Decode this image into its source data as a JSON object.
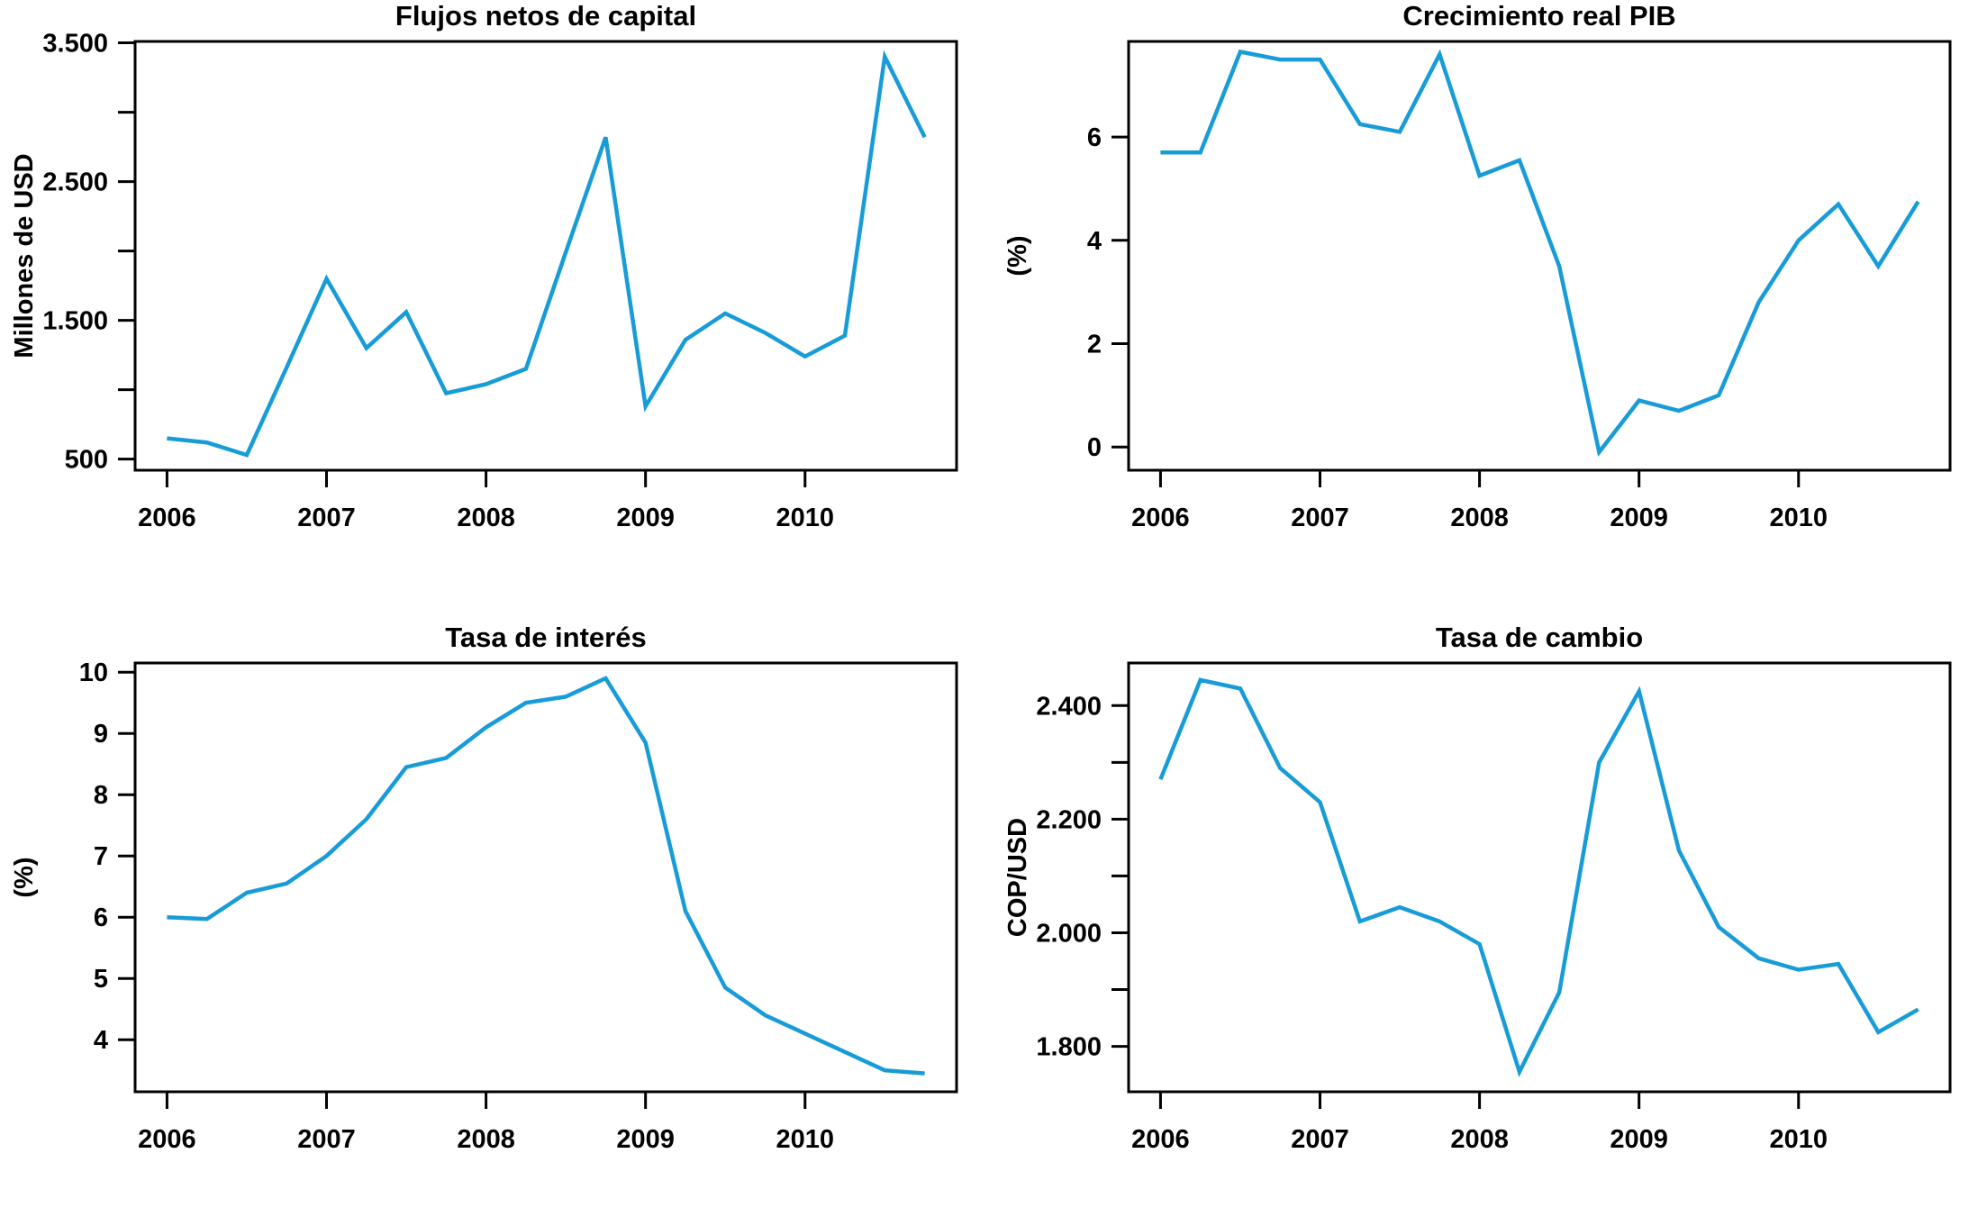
{
  "page": {
    "background": "#ffffff",
    "text_color": "#000000",
    "axis_color": "#000000"
  },
  "chart_data": [
    {
      "type": "line",
      "title": "Flujos netos de capital",
      "ylabel": "Millones de USD",
      "line_color": "#189cd8",
      "grid": false,
      "legend": "none",
      "xlim": [
        2005.8,
        2010.95
      ],
      "ylim": [
        420,
        3510
      ],
      "x": [
        2006.0,
        2006.25,
        2006.5,
        2006.75,
        2007.0,
        2007.25,
        2007.5,
        2007.75,
        2008.0,
        2008.25,
        2008.5,
        2008.75,
        2009.0,
        2009.25,
        2009.5,
        2009.75,
        2010.0,
        2010.25,
        2010.5,
        2010.75
      ],
      "values": [
        650,
        620,
        530,
        1160,
        1800,
        1300,
        1560,
        975,
        1040,
        1150,
        1990,
        2820,
        880,
        1360,
        1550,
        1410,
        1240,
        1390,
        3400,
        2820
      ],
      "xticks": {
        "values": [
          2006,
          2007,
          2008,
          2009,
          2010
        ],
        "labels": [
          "2006",
          "2007",
          "2008",
          "2009",
          "2010"
        ]
      },
      "yticks": {
        "values": [
          500,
          1000,
          1500,
          2000,
          2500,
          3000,
          3500
        ],
        "labels": [
          "500",
          "",
          "1.500",
          "",
          "2.500",
          "",
          "3.500"
        ]
      }
    },
    {
      "type": "line",
      "title": "Crecimiento real PIB",
      "ylabel": "(%)",
      "line_color": "#189cd8",
      "grid": false,
      "legend": "none",
      "xlim": [
        2005.8,
        2010.95
      ],
      "ylim": [
        -0.45,
        7.85
      ],
      "x": [
        2006.0,
        2006.25,
        2006.5,
        2006.75,
        2007.0,
        2007.25,
        2007.5,
        2007.75,
        2008.0,
        2008.25,
        2008.5,
        2008.75,
        2009.0,
        2009.25,
        2009.5,
        2009.75,
        2010.0,
        2010.25,
        2010.5,
        2010.75
      ],
      "values": [
        5.7,
        5.7,
        7.65,
        7.5,
        7.5,
        6.25,
        6.1,
        7.6,
        5.25,
        5.55,
        3.5,
        -0.1,
        0.9,
        0.7,
        1.0,
        2.8,
        4.0,
        4.7,
        3.5,
        4.75
      ],
      "xticks": {
        "values": [
          2006,
          2007,
          2008,
          2009,
          2010
        ],
        "labels": [
          "2006",
          "2007",
          "2008",
          "2009",
          "2010"
        ]
      },
      "yticks": {
        "values": [
          0,
          2,
          4,
          6
        ],
        "labels": [
          "0",
          "2",
          "4",
          "6"
        ]
      }
    },
    {
      "type": "line",
      "title": "Tasa de interés",
      "ylabel": "(%)",
      "line_color": "#189cd8",
      "grid": false,
      "legend": "none",
      "xlim": [
        2005.8,
        2010.95
      ],
      "ylim": [
        3.15,
        10.15
      ],
      "x": [
        2006.0,
        2006.25,
        2006.5,
        2006.75,
        2007.0,
        2007.25,
        2007.5,
        2007.75,
        2008.0,
        2008.25,
        2008.5,
        2008.75,
        2009.0,
        2009.25,
        2009.5,
        2009.75,
        2010.0,
        2010.25,
        2010.5,
        2010.75
      ],
      "values": [
        6.0,
        5.97,
        6.4,
        6.55,
        7.0,
        7.6,
        8.45,
        8.6,
        9.1,
        9.5,
        9.6,
        9.9,
        8.85,
        6.1,
        4.85,
        4.4,
        4.1,
        3.8,
        3.5,
        3.45
      ],
      "xticks": {
        "values": [
          2006,
          2007,
          2008,
          2009,
          2010
        ],
        "labels": [
          "2006",
          "2007",
          "2008",
          "2009",
          "2010"
        ]
      },
      "yticks": {
        "values": [
          4,
          5,
          6,
          7,
          8,
          9,
          10
        ],
        "labels": [
          "4",
          "5",
          "6",
          "7",
          "8",
          "9",
          "10"
        ]
      }
    },
    {
      "type": "line",
      "title": "Tasa de cambio",
      "ylabel": "COP/USD",
      "line_color": "#189cd8",
      "grid": false,
      "legend": "none",
      "xlim": [
        2005.8,
        2010.95
      ],
      "ylim": [
        1720,
        2475
      ],
      "x": [
        2006.0,
        2006.25,
        2006.5,
        2006.75,
        2007.0,
        2007.25,
        2007.5,
        2007.75,
        2008.0,
        2008.25,
        2008.5,
        2008.75,
        2009.0,
        2009.25,
        2009.5,
        2009.75,
        2010.0,
        2010.25,
        2010.5,
        2010.75
      ],
      "values": [
        2270,
        2445,
        2430,
        2290,
        2230,
        2020,
        2045,
        2020,
        1980,
        1755,
        1895,
        2300,
        2425,
        2145,
        2010,
        1955,
        1935,
        1945,
        1825,
        1865
      ],
      "xticks": {
        "values": [
          2006,
          2007,
          2008,
          2009,
          2010
        ],
        "labels": [
          "2006",
          "2007",
          "2008",
          "2009",
          "2010"
        ]
      },
      "yticks": {
        "values": [
          1800,
          1900,
          2000,
          2100,
          2200,
          2300,
          2400
        ],
        "labels": [
          "1.800",
          "",
          "2.000",
          "",
          "2.200",
          "",
          "2.400"
        ]
      }
    }
  ]
}
